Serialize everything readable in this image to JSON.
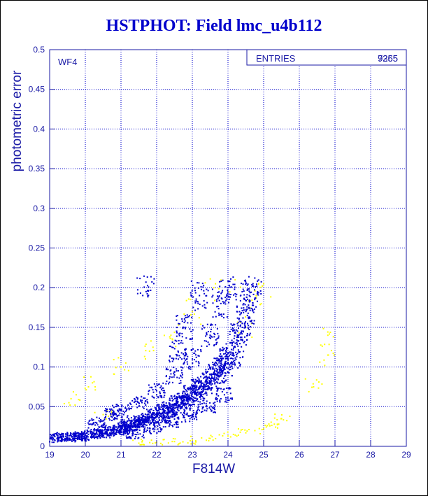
{
  "chart_data": {
    "type": "scatter",
    "title": "HSTPHOT: Field lmc_u4b112",
    "xlabel": "F814W",
    "ylabel": "photometric error",
    "xlim": [
      19,
      29
    ],
    "ylim": [
      0,
      0.5
    ],
    "x_ticks": [
      "19",
      "20",
      "21",
      "22",
      "23",
      "24",
      "25",
      "26",
      "27",
      "28",
      "29"
    ],
    "y_ticks": [
      "0",
      "0.05",
      "0.1",
      "0.15",
      "0.2",
      "0.25",
      "0.3",
      "0.35",
      "0.4",
      "0.45",
      "0.5"
    ],
    "grid": true,
    "panel_label": "WF4",
    "stats_label": "ENTRIES",
    "entries_values": [
      "9265",
      "7355"
    ],
    "colors": {
      "primary": "#0000cc",
      "secondary": "#ffff00",
      "text": "#1a1aa6"
    },
    "series": [
      {
        "color": "#0000cc",
        "points": [
          [
            19.1,
            0.01
          ],
          [
            19.3,
            0.012
          ],
          [
            19.5,
            0.011
          ],
          [
            19.7,
            0.013
          ],
          [
            19.9,
            0.012
          ],
          [
            20.0,
            0.014
          ],
          [
            20.2,
            0.015
          ],
          [
            20.4,
            0.017
          ],
          [
            20.5,
            0.016
          ],
          [
            20.6,
            0.019
          ],
          [
            20.8,
            0.021
          ],
          [
            20.9,
            0.02
          ],
          [
            21.0,
            0.024
          ],
          [
            21.1,
            0.022
          ],
          [
            21.2,
            0.027
          ],
          [
            21.3,
            0.026
          ],
          [
            21.4,
            0.03
          ],
          [
            21.5,
            0.028
          ],
          [
            21.6,
            0.033
          ],
          [
            21.7,
            0.031
          ],
          [
            21.8,
            0.036
          ],
          [
            21.9,
            0.034
          ],
          [
            22.0,
            0.04
          ],
          [
            22.1,
            0.038
          ],
          [
            22.2,
            0.045
          ],
          [
            22.3,
            0.043
          ],
          [
            22.4,
            0.05
          ],
          [
            22.5,
            0.048
          ],
          [
            22.6,
            0.056
          ],
          [
            22.7,
            0.054
          ],
          [
            22.8,
            0.062
          ],
          [
            22.9,
            0.06
          ],
          [
            23.0,
            0.068
          ],
          [
            23.1,
            0.066
          ],
          [
            23.2,
            0.075
          ],
          [
            23.3,
            0.073
          ],
          [
            23.4,
            0.083
          ],
          [
            23.5,
            0.081
          ],
          [
            23.6,
            0.092
          ],
          [
            23.7,
            0.09
          ],
          [
            23.8,
            0.102
          ],
          [
            23.9,
            0.1
          ],
          [
            24.0,
            0.113
          ],
          [
            24.1,
            0.111
          ],
          [
            24.2,
            0.125
          ],
          [
            24.3,
            0.14
          ],
          [
            24.4,
            0.155
          ],
          [
            24.5,
            0.17
          ],
          [
            24.6,
            0.19
          ],
          [
            24.7,
            0.205
          ],
          [
            21.0,
            0.045
          ],
          [
            21.5,
            0.055
          ],
          [
            22.0,
            0.07
          ],
          [
            22.5,
            0.09
          ],
          [
            23.0,
            0.11
          ],
          [
            23.5,
            0.14
          ],
          [
            23.8,
            0.18
          ],
          [
            24.0,
            0.2
          ],
          [
            23.2,
            0.19
          ],
          [
            22.8,
            0.15
          ],
          [
            21.7,
            0.207
          ],
          [
            22.6,
            0.12
          ],
          [
            20.3,
            0.03
          ],
          [
            20.8,
            0.04
          ],
          [
            21.4,
            0.015
          ],
          [
            21.9,
            0.022
          ],
          [
            22.4,
            0.03
          ],
          [
            22.9,
            0.038
          ],
          [
            23.4,
            0.05
          ],
          [
            23.9,
            0.065
          ]
        ]
      },
      {
        "color": "#ffff00",
        "points": [
          [
            21.5,
            0.004
          ],
          [
            22.0,
            0.005
          ],
          [
            22.5,
            0.006
          ],
          [
            23.0,
            0.008
          ],
          [
            23.5,
            0.01
          ],
          [
            24.0,
            0.013
          ],
          [
            24.5,
            0.017
          ],
          [
            25.0,
            0.022
          ],
          [
            25.3,
            0.028
          ],
          [
            25.5,
            0.035
          ],
          [
            21.0,
            0.1
          ],
          [
            21.8,
            0.12
          ],
          [
            22.4,
            0.14
          ],
          [
            23.0,
            0.17
          ],
          [
            23.6,
            0.2
          ],
          [
            24.2,
            0.21
          ],
          [
            24.8,
            0.19
          ],
          [
            26.8,
            0.14
          ],
          [
            26.4,
            0.075
          ],
          [
            26.8,
            0.115
          ],
          [
            20.5,
            0.04
          ],
          [
            19.6,
            0.06
          ],
          [
            20.2,
            0.08
          ],
          [
            24.5,
            0.15
          ],
          [
            25.0,
            0.205
          ]
        ]
      }
    ]
  }
}
